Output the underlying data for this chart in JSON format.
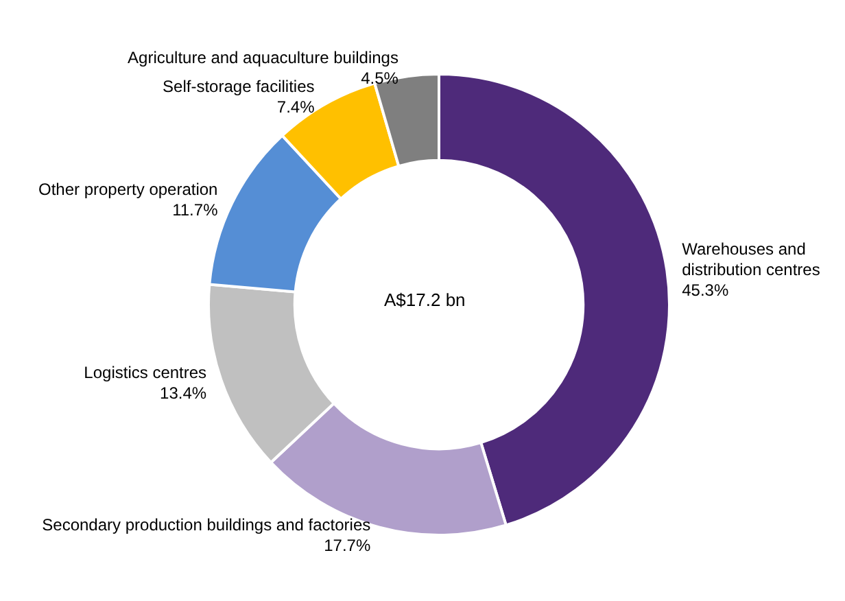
{
  "chart_data": {
    "type": "donut",
    "categories": [
      "Warehouses and distribution centres",
      "Secondary production buildings and factories",
      "Logistics centres",
      "Other property operation",
      "Self-storage facilities",
      "Agriculture and aquaculture buildings"
    ],
    "values": [
      45.3,
      17.7,
      13.4,
      11.7,
      7.4,
      4.5
    ],
    "colors": [
      "#4e2a7a",
      "#b09fcb",
      "#c0c0c0",
      "#558ed5",
      "#ffc000",
      "#7f7f7f"
    ],
    "value_labels": [
      "45.3%",
      "17.7%",
      "13.4%",
      "11.7%",
      "7.4%",
      "4.5%"
    ],
    "annotations": [
      "A$17.2 bn"
    ],
    "legend": false
  }
}
